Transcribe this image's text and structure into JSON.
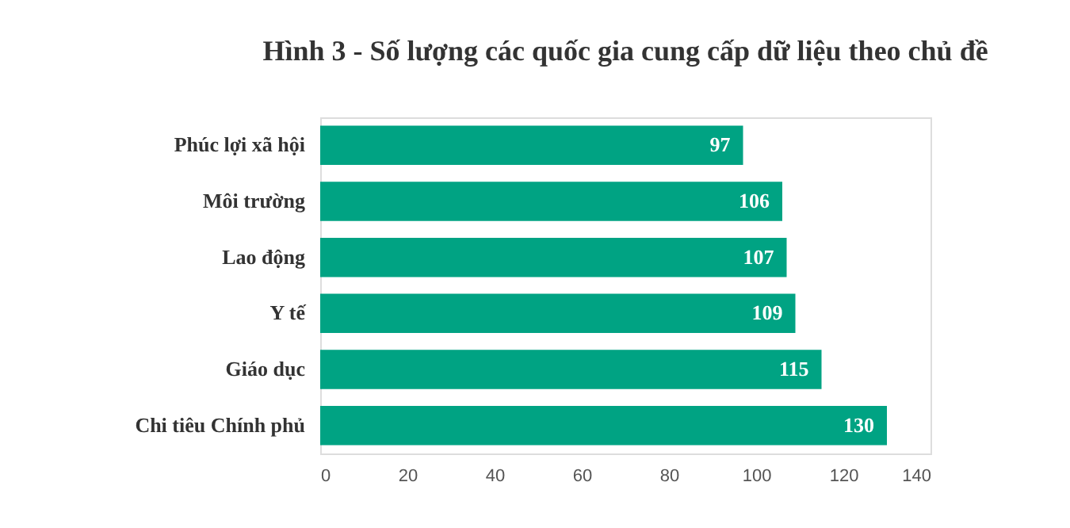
{
  "chart_data": {
    "type": "bar",
    "orientation": "horizontal",
    "title": "Hình 3 - Số lượng các quốc gia cung cấp dữ liệu theo chủ đề",
    "categories": [
      "Phúc lợi xã hội",
      "Môi trường",
      "Lao động",
      "Y tế",
      "Giáo dục",
      "Chi tiêu Chính phủ"
    ],
    "values": [
      97,
      106,
      107,
      109,
      115,
      130
    ],
    "color": "#00a383",
    "xlim": [
      0,
      140
    ],
    "xticks": [
      0,
      20,
      40,
      60,
      80,
      100,
      120,
      140
    ],
    "grid": false,
    "data_labels": true
  }
}
